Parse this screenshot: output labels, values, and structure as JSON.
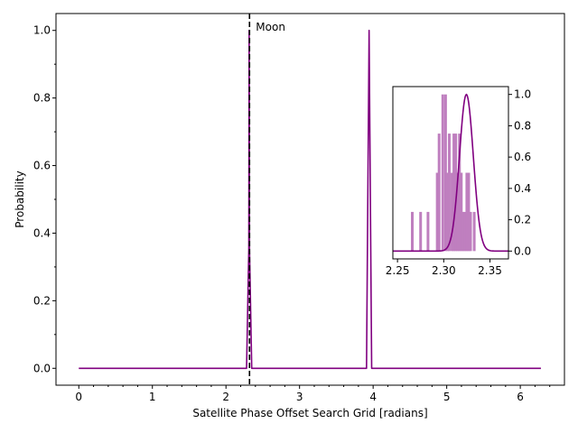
{
  "chart_data": [
    {
      "type": "line",
      "xlabel": "Satellite Phase Offset Search Grid [radians]",
      "ylabel": "Probability",
      "xlim": [
        -0.31,
        6.6
      ],
      "ylim": [
        -0.05,
        1.05
      ],
      "x_ticks": [
        0,
        1,
        2,
        3,
        4,
        5,
        6
      ],
      "x_tick_labels": [
        "0",
        "1",
        "2",
        "3",
        "4",
        "5",
        "6"
      ],
      "y_ticks": [
        0.0,
        0.2,
        0.4,
        0.6,
        0.8,
        1.0
      ],
      "y_tick_labels": [
        "0.0",
        "0.2",
        "0.4",
        "0.6",
        "0.8",
        "1.0"
      ],
      "grid": false,
      "colors": {
        "line": "#800080",
        "marker": "#000000"
      },
      "annotation": {
        "text": "Moon",
        "x": 2.32
      },
      "series": [
        {
          "points": [
            [
              0,
              0
            ],
            [
              2.28,
              0
            ],
            [
              2.31,
              0.35
            ],
            [
              2.315,
              1.0
            ],
            [
              2.32,
              0.35
            ],
            [
              2.35,
              0
            ],
            [
              3.91,
              0
            ],
            [
              3.945,
              1.0
            ],
            [
              3.98,
              0
            ],
            [
              6.28,
              0
            ]
          ]
        }
      ]
    },
    {
      "type": "bar",
      "inset": true,
      "xlim": [
        2.245,
        2.37
      ],
      "ylim": [
        -0.05,
        1.05
      ],
      "y_axis_side": "right",
      "x_ticks": [
        2.25,
        2.3,
        2.35
      ],
      "x_tick_labels": [
        "2.25",
        "2.30",
        "2.35"
      ],
      "y_ticks": [
        0.0,
        0.2,
        0.4,
        0.6,
        0.8,
        1.0
      ],
      "y_tick_labels": [
        "0.0",
        "0.2",
        "0.4",
        "0.6",
        "0.8",
        "1.0"
      ],
      "colors": {
        "bars": "#BF7FBF",
        "curve": "#800080"
      },
      "bars": [
        [
          2.266,
          0.25
        ],
        [
          2.275,
          0.25
        ],
        [
          2.283,
          0.25
        ],
        [
          2.293,
          0.5
        ],
        [
          2.295,
          0.75
        ],
        [
          2.299,
          1.0
        ],
        [
          2.302,
          1.0
        ],
        [
          2.304,
          0.5
        ],
        [
          2.306,
          0.75
        ],
        [
          2.309,
          0.5
        ],
        [
          2.311,
          0.75
        ],
        [
          2.313,
          0.75
        ],
        [
          2.315,
          0.5
        ],
        [
          2.317,
          0.75
        ],
        [
          2.319,
          0.5
        ],
        [
          2.321,
          0.25
        ],
        [
          2.323,
          0.25
        ],
        [
          2.325,
          0.5
        ],
        [
          2.327,
          0.5
        ],
        [
          2.329,
          0.25
        ],
        [
          2.333,
          0.25
        ]
      ],
      "curve": {
        "mean": 2.3245,
        "sigma": 0.0075,
        "x_range": [
          2.245,
          2.37
        ]
      }
    }
  ]
}
